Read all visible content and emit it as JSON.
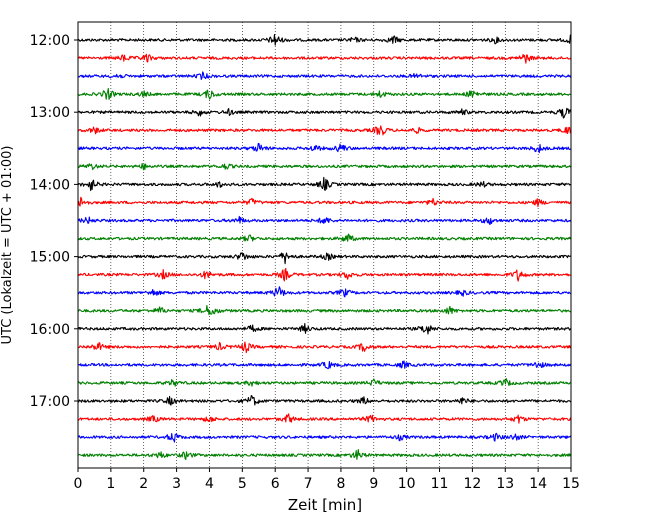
{
  "chart_data": {
    "type": "line",
    "title": "",
    "xlabel": "Zeit  [min]",
    "ylabel": "UTC (Lokalzeit = UTC + 01:00)",
    "xlim": [
      0,
      15
    ],
    "x_ticks": [
      "0",
      "1",
      "2",
      "3",
      "4",
      "5",
      "6",
      "7",
      "8",
      "9",
      "10",
      "11",
      "12",
      "13",
      "14",
      "15"
    ],
    "y_tick_labels": [
      "12:00",
      "13:00",
      "14:00",
      "15:00",
      "16:00",
      "17:00"
    ],
    "grid": "vertical dotted lines at each minute",
    "trace_interval_minutes": 15,
    "trace_colors": [
      "#000000",
      "#ff0000",
      "#0000ff",
      "#008000"
    ],
    "traces": [
      {
        "start": "12:00",
        "color": "#000000",
        "events": [
          [
            6.0,
            1.0
          ],
          [
            8.4,
            0.4
          ],
          [
            9.6,
            0.6
          ],
          [
            12.7,
            0.4
          ],
          [
            15.0,
            0.6
          ]
        ]
      },
      {
        "start": "12:15",
        "color": "#ff0000",
        "events": [
          [
            1.4,
            0.5
          ],
          [
            2.1,
            0.6
          ],
          [
            13.6,
            0.8
          ]
        ]
      },
      {
        "start": "12:30",
        "color": "#0000ff",
        "events": [
          [
            1.2,
            0.4
          ],
          [
            3.8,
            0.5
          ],
          [
            10.3,
            0.4
          ]
        ]
      },
      {
        "start": "12:45",
        "color": "#008000",
        "events": [
          [
            0.9,
            0.9
          ],
          [
            2.0,
            0.4
          ],
          [
            4.0,
            0.8
          ],
          [
            9.2,
            0.5
          ],
          [
            12.0,
            0.7
          ]
        ]
      },
      {
        "start": "13:00",
        "color": "#000000",
        "events": [
          [
            3.7,
            0.5
          ],
          [
            4.6,
            0.4
          ],
          [
            11.7,
            0.4
          ],
          [
            14.8,
            0.9
          ]
        ]
      },
      {
        "start": "13:15",
        "color": "#ff0000",
        "events": [
          [
            0.5,
            0.5
          ],
          [
            9.2,
            1.0
          ],
          [
            10.3,
            0.4
          ],
          [
            14.9,
            0.6
          ]
        ]
      },
      {
        "start": "13:30",
        "color": "#0000ff",
        "events": [
          [
            5.5,
            0.7
          ],
          [
            7.2,
            0.5
          ],
          [
            8.0,
            0.7
          ],
          [
            14.0,
            0.7
          ]
        ]
      },
      {
        "start": "13:45",
        "color": "#008000",
        "events": [
          [
            0.4,
            0.5
          ],
          [
            2.0,
            0.4
          ],
          [
            4.5,
            0.4
          ]
        ]
      },
      {
        "start": "14:00",
        "color": "#000000",
        "events": [
          [
            0.4,
            0.9
          ],
          [
            4.3,
            0.4
          ],
          [
            7.5,
            1.0
          ],
          [
            12.3,
            0.4
          ]
        ]
      },
      {
        "start": "14:15",
        "color": "#ff0000",
        "events": [
          [
            0.1,
            0.8
          ],
          [
            5.3,
            0.5
          ],
          [
            10.8,
            0.5
          ],
          [
            14.0,
            0.5
          ]
        ]
      },
      {
        "start": "14:30",
        "color": "#0000ff",
        "events": [
          [
            0.3,
            0.5
          ],
          [
            4.9,
            0.5
          ],
          [
            7.5,
            0.6
          ],
          [
            12.5,
            0.6
          ]
        ]
      },
      {
        "start": "14:45",
        "color": "#008000",
        "events": [
          [
            5.2,
            0.5
          ],
          [
            8.2,
            0.7
          ]
        ]
      },
      {
        "start": "15:00",
        "color": "#000000",
        "events": [
          [
            5.0,
            0.7
          ],
          [
            6.3,
            0.9
          ],
          [
            7.6,
            0.5
          ]
        ]
      },
      {
        "start": "15:15",
        "color": "#ff0000",
        "events": [
          [
            2.6,
            0.6
          ],
          [
            3.9,
            0.6
          ],
          [
            6.3,
            0.9
          ],
          [
            8.2,
            0.6
          ],
          [
            13.4,
            0.9
          ]
        ]
      },
      {
        "start": "15:30",
        "color": "#0000ff",
        "events": [
          [
            2.3,
            0.5
          ],
          [
            6.1,
            1.0
          ],
          [
            8.1,
            0.6
          ],
          [
            11.7,
            0.4
          ]
        ]
      },
      {
        "start": "15:45",
        "color": "#008000",
        "events": [
          [
            2.5,
            0.5
          ],
          [
            3.9,
            0.6
          ],
          [
            4.1,
            0.6
          ],
          [
            11.3,
            0.6
          ]
        ]
      },
      {
        "start": "16:00",
        "color": "#000000",
        "events": [
          [
            5.3,
            0.5
          ],
          [
            6.9,
            0.6
          ],
          [
            10.6,
            1.0
          ]
        ]
      },
      {
        "start": "16:15",
        "color": "#ff0000",
        "events": [
          [
            0.6,
            0.7
          ],
          [
            4.3,
            0.5
          ],
          [
            5.1,
            0.8
          ],
          [
            8.7,
            0.7
          ]
        ]
      },
      {
        "start": "16:30",
        "color": "#0000ff",
        "events": [
          [
            7.6,
            0.6
          ],
          [
            9.9,
            0.5
          ],
          [
            14.0,
            0.6
          ]
        ]
      },
      {
        "start": "16:45",
        "color": "#008000",
        "events": [
          [
            2.9,
            0.5
          ],
          [
            5.3,
            0.4
          ],
          [
            9.0,
            0.5
          ],
          [
            13.0,
            0.6
          ]
        ]
      },
      {
        "start": "17:00",
        "color": "#000000",
        "events": [
          [
            2.8,
            0.6
          ],
          [
            5.3,
            0.9
          ],
          [
            8.7,
            0.5
          ],
          [
            11.7,
            0.5
          ]
        ]
      },
      {
        "start": "17:15",
        "color": "#ff0000",
        "events": [
          [
            2.3,
            0.5
          ],
          [
            4.0,
            0.5
          ],
          [
            6.4,
            0.7
          ],
          [
            8.9,
            0.6
          ],
          [
            13.4,
            0.6
          ]
        ]
      },
      {
        "start": "17:30",
        "color": "#0000ff",
        "events": [
          [
            2.9,
            0.8
          ],
          [
            9.8,
            0.4
          ],
          [
            12.7,
            0.5
          ],
          [
            13.3,
            0.5
          ]
        ]
      },
      {
        "start": "17:45",
        "color": "#008000",
        "events": [
          [
            2.5,
            0.5
          ],
          [
            3.3,
            0.6
          ],
          [
            8.5,
            0.8
          ]
        ]
      }
    ]
  }
}
